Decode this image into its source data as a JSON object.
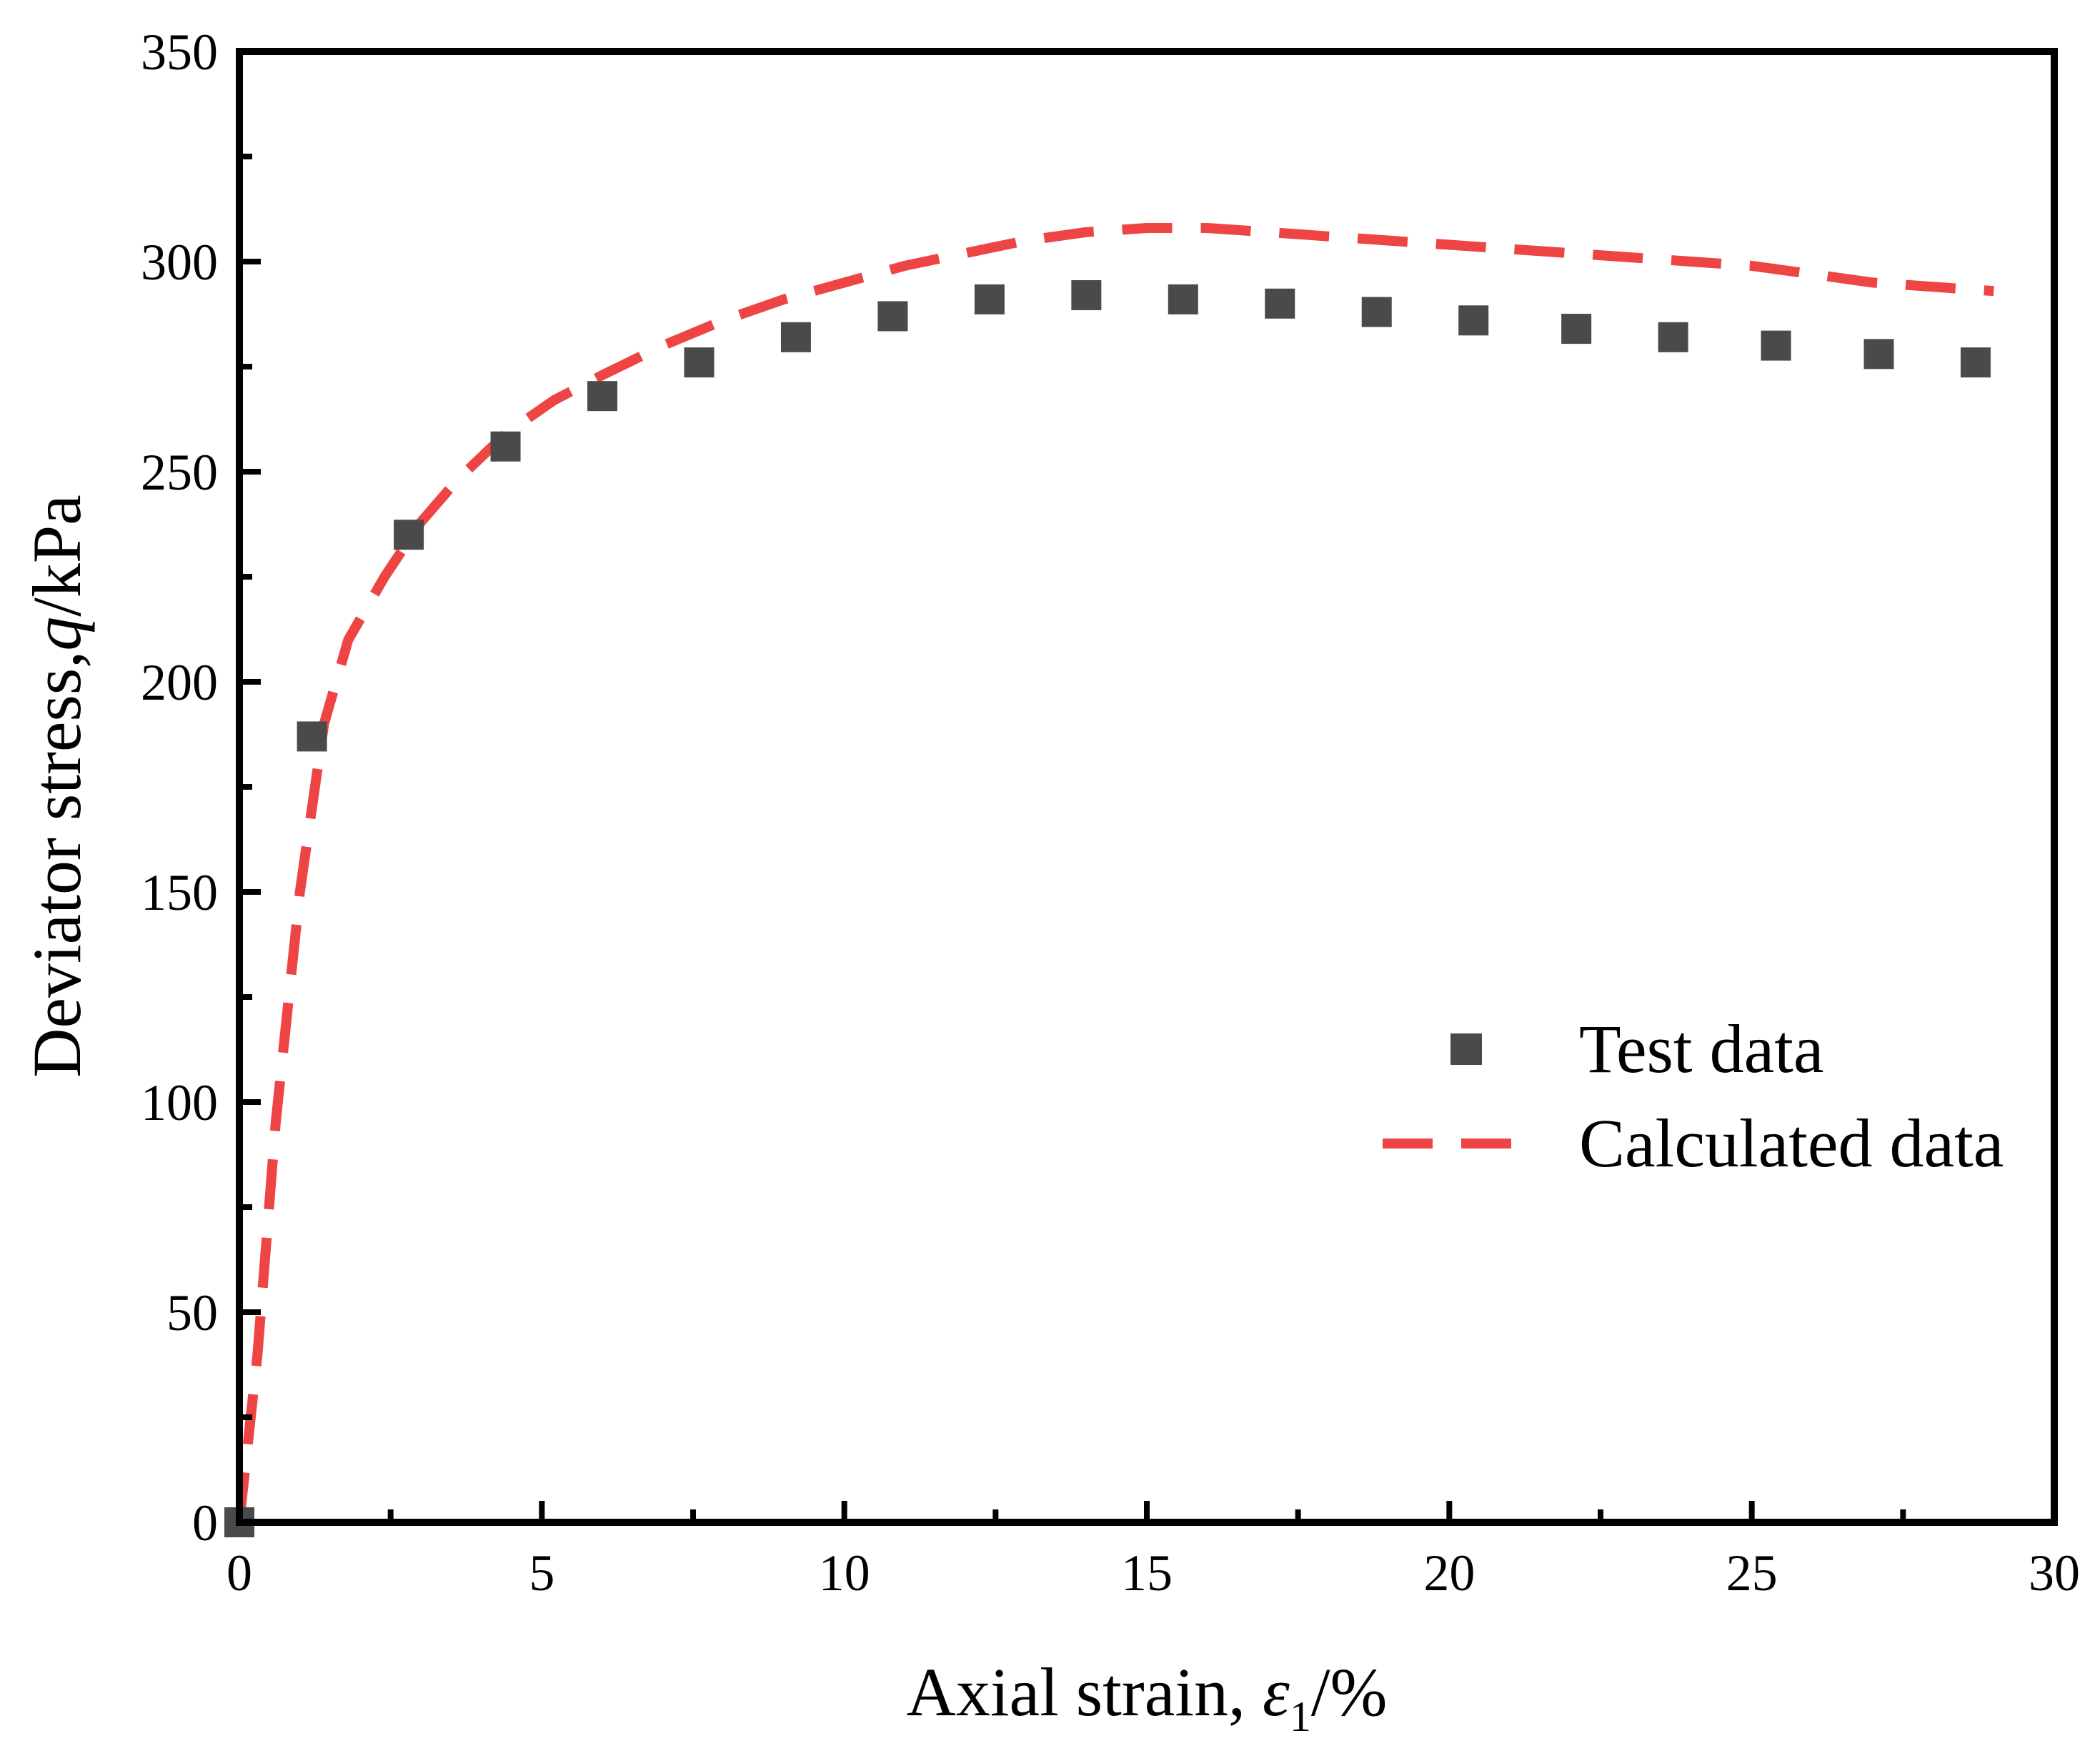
{
  "chart_data": {
    "type": "scatter",
    "title": "",
    "xlabel": "Axial strain, ε1/%",
    "xlabel_parts": {
      "prefix": "Axial strain, ",
      "symbol": "ε",
      "subscript": "1",
      "suffix": "/%"
    },
    "ylabel": "Deviator stress,q/kPa",
    "ylabel_parts": {
      "prefix": "Deviator stress,",
      "symbol": "q",
      "suffix": "/kPa"
    },
    "xlim": [
      0,
      30
    ],
    "ylim": [
      0,
      350
    ],
    "xticks": [
      0,
      5,
      10,
      15,
      20,
      25,
      30
    ],
    "yticks": [
      0,
      50,
      100,
      150,
      200,
      250,
      300,
      350
    ],
    "grid": false,
    "legend_position": "center-right",
    "series": [
      {
        "name": "Test data",
        "kind": "markers",
        "marker": "square",
        "color": "#4a4a4a",
        "x": [
          0,
          1.2,
          2.8,
          4.4,
          6.0,
          7.6,
          9.2,
          10.8,
          12.4,
          14.0,
          15.6,
          17.2,
          18.8,
          20.4,
          22.1,
          23.7,
          25.4,
          27.1,
          28.7
        ],
        "y": [
          0,
          187,
          235,
          256,
          268,
          276,
          282,
          287,
          291,
          292,
          291,
          290,
          288,
          286,
          284,
          282,
          280,
          278,
          276
        ]
      },
      {
        "name": "Calculated data",
        "kind": "dashed-line",
        "color": "#ee4444",
        "x": [
          0,
          0.3,
          0.6,
          1.0,
          1.4,
          1.8,
          2.4,
          3.0,
          3.6,
          4.4,
          5.2,
          6.0,
          7.0,
          8.0,
          9.0,
          10.0,
          11.0,
          12.0,
          13.0,
          14.0,
          15.0,
          16.0,
          17.0,
          18.0,
          19.0,
          20.0,
          21.0,
          22.0,
          23.0,
          24.0,
          25.0,
          26.0,
          27.0,
          28.0,
          29.0
        ],
        "y": [
          0,
          40,
          95,
          150,
          190,
          210,
          225,
          238,
          248,
          259,
          267,
          273,
          280,
          286,
          291,
          295,
          299,
          302,
          305,
          307,
          308,
          308,
          307,
          306,
          305,
          304,
          303,
          302,
          301,
          300,
          299,
          297,
          295,
          294,
          293
        ]
      }
    ]
  }
}
